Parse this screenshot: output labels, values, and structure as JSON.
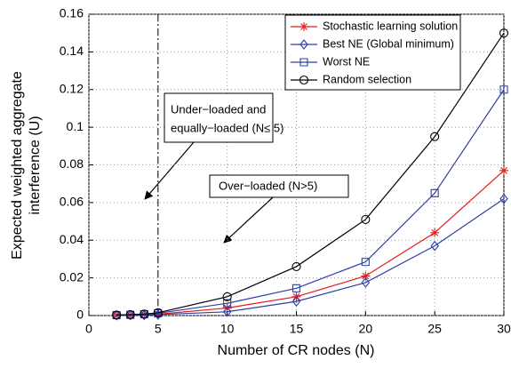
{
  "chart_data": {
    "type": "line",
    "xlabel": "Number of CR nodes (N)",
    "ylabel": [
      "Expected weighted aggregate",
      "interference (U)"
    ],
    "x": [
      2,
      3,
      4,
      5,
      10,
      15,
      20,
      25,
      30
    ],
    "series": [
      {
        "name": "Stochastic learning solution",
        "color": "#e41a1c",
        "marker": "star",
        "values": [
          0.0001,
          0.0002,
          0.0004,
          0.0007,
          0.004,
          0.01,
          0.021,
          0.044,
          0.077
        ]
      },
      {
        "name": "Best NE (Global minimum)",
        "color": "#2b3fa8",
        "marker": "diamond",
        "values": [
          0.0001,
          0.0002,
          0.0003,
          0.0005,
          0.002,
          0.0075,
          0.0175,
          0.037,
          0.062
        ]
      },
      {
        "name": "Worst NE",
        "color": "#2b3fa8",
        "marker": "square",
        "values": [
          0.0002,
          0.0004,
          0.0007,
          0.0012,
          0.0065,
          0.0145,
          0.0285,
          0.065,
          0.12
        ]
      },
      {
        "name": "Random selection",
        "color": "#000000",
        "marker": "circle",
        "values": [
          0.0003,
          0.0005,
          0.0008,
          0.0015,
          0.01,
          0.026,
          0.051,
          0.095,
          0.15
        ]
      }
    ],
    "xlim": [
      0,
      30
    ],
    "xticks": [
      0,
      5,
      10,
      15,
      20,
      25,
      30
    ],
    "ylim": [
      0,
      0.16
    ],
    "yticks": [
      0,
      0.02,
      0.04,
      0.06,
      0.08,
      0.1,
      0.12,
      0.14,
      0.16
    ],
    "grid": true,
    "legend": "upper right",
    "vline": 5,
    "annotations": [
      {
        "lines": [
          "Under−loaded and",
          "equally−loaded (N≤ 5)"
        ]
      },
      {
        "lines": [
          "Over−loaded (N>5)"
        ]
      }
    ]
  }
}
